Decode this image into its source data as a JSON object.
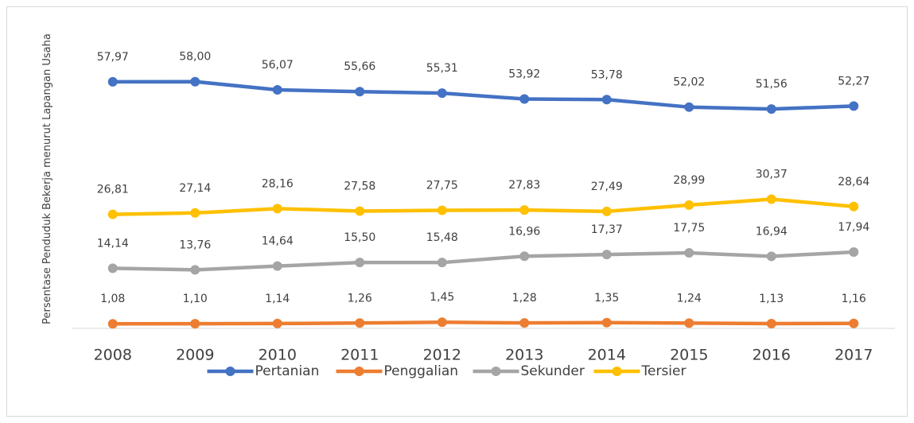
{
  "chart_data": {
    "type": "line",
    "y_label": "Persentase Penduduk Bekerja menurut Lapangan Usaha",
    "categories": [
      "2008",
      "2009",
      "2010",
      "2011",
      "2012",
      "2013",
      "2014",
      "2015",
      "2016",
      "2017"
    ],
    "ylim": [
      0,
      70
    ],
    "series": [
      {
        "name": "Pertanian",
        "color": "#4472c4",
        "values": [
          57.97,
          58.0,
          56.07,
          55.66,
          55.31,
          53.92,
          53.78,
          52.02,
          51.56,
          52.27
        ],
        "value_labels": [
          "57,97",
          "58,00",
          "56,07",
          "55,66",
          "55,31",
          "53,92",
          "53,78",
          "52,02",
          "51,56",
          "52,27"
        ]
      },
      {
        "name": "Penggalian",
        "color": "#ed7d31",
        "values": [
          1.08,
          1.1,
          1.14,
          1.26,
          1.45,
          1.28,
          1.35,
          1.24,
          1.13,
          1.16
        ],
        "value_labels": [
          "1,08",
          "1,10",
          "1,14",
          "1,26",
          "1,45",
          "1,28",
          "1,35",
          "1,24",
          "1,13",
          "1,16"
        ]
      },
      {
        "name": "Sekunder",
        "color": "#a5a5a5",
        "values": [
          14.14,
          13.76,
          14.64,
          15.5,
          15.48,
          16.96,
          17.37,
          17.75,
          16.94,
          17.94
        ],
        "value_labels": [
          "14,14",
          "13,76",
          "14,64",
          "15,50",
          "15,48",
          "16,96",
          "17,37",
          "17,75",
          "16,94",
          "17,94"
        ]
      },
      {
        "name": "Tersier",
        "color": "#ffc000",
        "values": [
          26.81,
          27.14,
          28.16,
          27.58,
          27.75,
          27.83,
          27.49,
          28.99,
          30.37,
          28.64
        ],
        "value_labels": [
          "26,81",
          "27,14",
          "28,16",
          "27,58",
          "27,75",
          "27,83",
          "27,49",
          "28,99",
          "30,37",
          "28,64"
        ]
      }
    ]
  }
}
